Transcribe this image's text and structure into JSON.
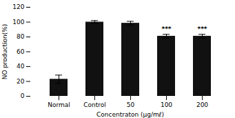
{
  "chart_data": {
    "type": "bar",
    "categories": [
      "Normal",
      "Control",
      "50",
      "100",
      "200"
    ],
    "values": [
      23.0,
      100.0,
      98.5,
      81.0,
      81.0
    ],
    "errors": [
      5.5,
      2.0,
      2.5,
      2.5,
      2.5
    ],
    "annotations": [
      null,
      null,
      null,
      "***",
      "***"
    ],
    "color": "#111111",
    "xlabel": "Concentraton (μg/mℓ)",
    "ylabel": "NO production(%)",
    "ylim": [
      0,
      120
    ],
    "yticks": [
      0,
      20,
      40,
      60,
      80,
      100,
      120
    ],
    "grid": false
  }
}
